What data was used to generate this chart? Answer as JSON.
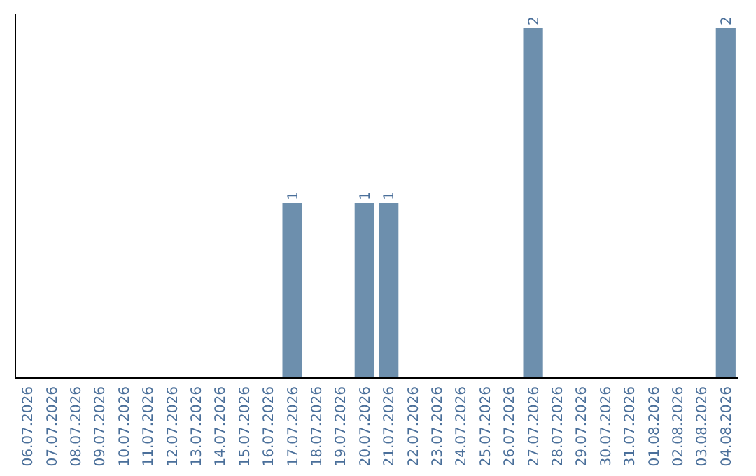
{
  "chart_data": {
    "type": "bar",
    "categories": [
      "06.07.2026",
      "07.07.2026",
      "08.07.2026",
      "09.07.2026",
      "10.07.2026",
      "11.07.2026",
      "12.07.2026",
      "13.07.2026",
      "14.07.2026",
      "15.07.2026",
      "16.07.2026",
      "17.07.2026",
      "18.07.2026",
      "19.07.2026",
      "20.07.2026",
      "21.07.2026",
      "22.07.2026",
      "23.07.2026",
      "24.07.2026",
      "25.07.2026",
      "26.07.2026",
      "27.07.2026",
      "28.07.2026",
      "29.07.2026",
      "30.07.2026",
      "31.07.2026",
      "01.08.2026",
      "02.08.2026",
      "03.08.2026",
      "04.08.2026"
    ],
    "values": [
      0,
      0,
      0,
      0,
      0,
      0,
      0,
      0,
      0,
      0,
      0,
      1,
      0,
      0,
      1,
      1,
      0,
      0,
      0,
      0,
      0,
      2,
      0,
      0,
      0,
      0,
      0,
      0,
      0,
      2
    ],
    "value_labels": [
      null,
      null,
      null,
      null,
      null,
      null,
      null,
      null,
      null,
      null,
      null,
      "1",
      null,
      null,
      "1",
      "1",
      null,
      null,
      null,
      null,
      null,
      "2",
      null,
      null,
      null,
      null,
      null,
      null,
      null,
      "2"
    ],
    "color": "#6d8fad"
  }
}
